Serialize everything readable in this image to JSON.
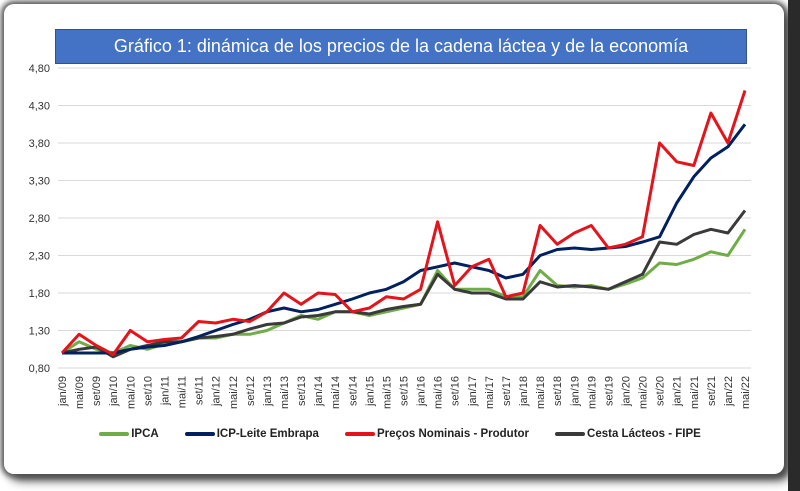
{
  "chart_data": {
    "type": "line",
    "title": "Gráfico 1: dinámica de los precios de la cadena láctea y de la economía",
    "xlabel": "",
    "ylabel": "",
    "ylim": [
      0.8,
      4.8
    ],
    "yticks": [
      "0,80",
      "1,30",
      "1,80",
      "2,30",
      "2,80",
      "3,30",
      "3,80",
      "4,30",
      "4,80"
    ],
    "ytick_values": [
      0.8,
      1.3,
      1.8,
      2.3,
      2.8,
      3.3,
      3.8,
      4.3,
      4.8
    ],
    "grid": true,
    "legend_position": "bottom",
    "x": [
      "jan/09",
      "mai/09",
      "set/09",
      "jan/10",
      "mai/10",
      "set/10",
      "jan/11",
      "mai/11",
      "set/11",
      "jan/12",
      "mai/12",
      "set/12",
      "jan/13",
      "mai/13",
      "set/13",
      "jan/14",
      "mai/14",
      "set/14",
      "jan/15",
      "mai/15",
      "set/15",
      "jan/16",
      "mai/16",
      "set/16",
      "jan/17",
      "mai/17",
      "set/17",
      "jan/18",
      "mai/18",
      "set/18",
      "jan/19",
      "mai/19",
      "set/19",
      "jan/20",
      "mai/20",
      "set/20",
      "jan/21",
      "mai/21",
      "set/21",
      "jan/22",
      "mai/22"
    ],
    "series": [
      {
        "name": "IPCA",
        "color": "#70AD47",
        "values": [
          1.0,
          1.15,
          1.05,
          1.0,
          1.1,
          1.05,
          1.12,
          1.15,
          1.2,
          1.2,
          1.25,
          1.25,
          1.3,
          1.4,
          1.5,
          1.45,
          1.55,
          1.55,
          1.5,
          1.55,
          1.6,
          1.65,
          2.1,
          1.85,
          1.85,
          1.85,
          1.75,
          1.75,
          2.1,
          1.9,
          1.88,
          1.9,
          1.85,
          1.92,
          2.0,
          2.2,
          2.18,
          2.25,
          2.35,
          2.3,
          2.65
        ]
      },
      {
        "name": "ICP-Leite Embrapa",
        "color": "#002060",
        "values": [
          1.0,
          1.0,
          1.0,
          1.0,
          1.05,
          1.08,
          1.1,
          1.15,
          1.22,
          1.3,
          1.38,
          1.45,
          1.55,
          1.6,
          1.55,
          1.58,
          1.65,
          1.72,
          1.8,
          1.85,
          1.95,
          2.1,
          2.15,
          2.2,
          2.15,
          2.1,
          2.0,
          2.05,
          2.3,
          2.38,
          2.4,
          2.38,
          2.4,
          2.42,
          2.48,
          2.55,
          3.0,
          3.35,
          3.6,
          3.75,
          4.05
        ]
      },
      {
        "name": "Preços Nominais - Produtor",
        "color": "#E3141B",
        "values": [
          1.0,
          1.25,
          1.1,
          0.98,
          1.3,
          1.15,
          1.18,
          1.2,
          1.42,
          1.4,
          1.45,
          1.42,
          1.55,
          1.8,
          1.65,
          1.8,
          1.78,
          1.55,
          1.6,
          1.75,
          1.72,
          1.85,
          2.75,
          1.9,
          2.15,
          2.25,
          1.75,
          1.8,
          2.7,
          2.45,
          2.6,
          2.7,
          2.4,
          2.45,
          2.55,
          3.8,
          3.55,
          3.5,
          4.2,
          3.8,
          4.5
        ]
      },
      {
        "name": "Cesta Lácteos - FIPE",
        "color": "#3A3A3A",
        "values": [
          1.0,
          1.05,
          1.08,
          0.95,
          1.05,
          1.1,
          1.15,
          1.15,
          1.2,
          1.22,
          1.25,
          1.32,
          1.38,
          1.4,
          1.48,
          1.5,
          1.55,
          1.55,
          1.52,
          1.58,
          1.62,
          1.65,
          2.05,
          1.85,
          1.8,
          1.8,
          1.72,
          1.72,
          1.95,
          1.88,
          1.9,
          1.88,
          1.85,
          1.95,
          2.05,
          2.48,
          2.45,
          2.58,
          2.65,
          2.6,
          2.9
        ]
      }
    ]
  }
}
